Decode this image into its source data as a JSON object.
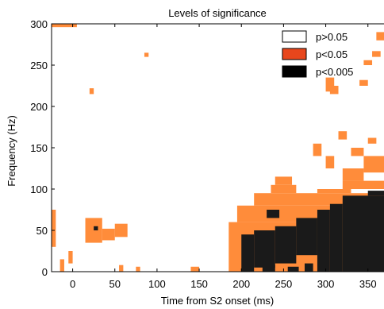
{
  "chart_data": {
    "type": "heatmap",
    "title": "Levels of significance",
    "xlabel": "Time from S2 onset (ms)",
    "ylabel": "Frequency (Hz)",
    "xlim": [
      -25,
      370
    ],
    "ylim": [
      0,
      300
    ],
    "x_ticks": [
      "0",
      "50",
      "100",
      "150",
      "200",
      "250",
      "300",
      "350"
    ],
    "x_tick_values": [
      0,
      50,
      100,
      150,
      200,
      250,
      300,
      350
    ],
    "y_ticks": [
      "0",
      "50",
      "100",
      "150",
      "200",
      "250",
      "300"
    ],
    "y_tick_values": [
      0,
      50,
      100,
      150,
      200,
      250,
      300
    ],
    "grid": false,
    "legend_position": "top-right",
    "levels": [
      {
        "label": "p>0.05",
        "color": "#ffffff"
      },
      {
        "label": "p<0.05",
        "color": "#ff8c3a"
      },
      {
        "label": "p<0.005",
        "color": "#1a1a1a"
      }
    ],
    "legend_swatch_colors": [
      "#ffffff",
      "#e8461c",
      "#000000"
    ],
    "regions": [
      {
        "level": "p<0.05",
        "x": [
          -25,
          -20
        ],
        "y": [
          30,
          75
        ]
      },
      {
        "level": "p<0.05",
        "x": [
          -15,
          -10
        ],
        "y": [
          0,
          15
        ]
      },
      {
        "level": "p<0.05",
        "x": [
          -5,
          0
        ],
        "y": [
          10,
          25
        ]
      },
      {
        "level": "p<0.05",
        "x": [
          15,
          35
        ],
        "y": [
          35,
          65
        ]
      },
      {
        "level": "p<0.05",
        "x": [
          35,
          50
        ],
        "y": [
          38,
          52
        ]
      },
      {
        "level": "p<0.05",
        "x": [
          50,
          65
        ],
        "y": [
          42,
          58
        ]
      },
      {
        "level": "p<0.05",
        "x": [
          20,
          25
        ],
        "y": [
          215,
          222
        ]
      },
      {
        "level": "p<0.05",
        "x": [
          55,
          60
        ],
        "y": [
          0,
          8
        ]
      },
      {
        "level": "p<0.05",
        "x": [
          75,
          80
        ],
        "y": [
          0,
          6
        ]
      },
      {
        "level": "p<0.05",
        "x": [
          85,
          90
        ],
        "y": [
          260,
          265
        ]
      },
      {
        "level": "p<0.05",
        "x": [
          140,
          150
        ],
        "y": [
          0,
          6
        ]
      },
      {
        "level": "p<0.05",
        "x": [
          -25,
          5
        ],
        "y": [
          296,
          300
        ]
      },
      {
        "level": "p<0.05",
        "x": [
          185,
          370
        ],
        "y": [
          0,
          60
        ]
      },
      {
        "level": "p<0.05",
        "x": [
          195,
          370
        ],
        "y": [
          60,
          80
        ]
      },
      {
        "level": "p<0.05",
        "x": [
          215,
          370
        ],
        "y": [
          80,
          95
        ]
      },
      {
        "level": "p<0.05",
        "x": [
          235,
          265
        ],
        "y": [
          95,
          105
        ]
      },
      {
        "level": "p<0.05",
        "x": [
          240,
          260
        ],
        "y": [
          105,
          115
        ]
      },
      {
        "level": "p<0.05",
        "x": [
          290,
          330
        ],
        "y": [
          95,
          100
        ]
      },
      {
        "level": "p<0.05",
        "x": [
          320,
          370
        ],
        "y": [
          100,
          110
        ]
      },
      {
        "level": "p<0.05",
        "x": [
          320,
          345
        ],
        "y": [
          110,
          125
        ]
      },
      {
        "level": "p<0.05",
        "x": [
          345,
          370
        ],
        "y": [
          120,
          140
        ]
      },
      {
        "level": "p<0.05",
        "x": [
          300,
          310
        ],
        "y": [
          125,
          140
        ]
      },
      {
        "level": "p<0.05",
        "x": [
          285,
          295
        ],
        "y": [
          140,
          155
        ]
      },
      {
        "level": "p<0.05",
        "x": [
          330,
          345
        ],
        "y": [
          140,
          150
        ]
      },
      {
        "level": "p<0.05",
        "x": [
          315,
          325
        ],
        "y": [
          160,
          170
        ]
      },
      {
        "level": "p<0.05",
        "x": [
          350,
          360
        ],
        "y": [
          155,
          162
        ]
      },
      {
        "level": "p<0.05",
        "x": [
          300,
          310
        ],
        "y": [
          218,
          235
        ]
      },
      {
        "level": "p<0.05",
        "x": [
          305,
          315
        ],
        "y": [
          215,
          225
        ]
      },
      {
        "level": "p<0.05",
        "x": [
          340,
          350
        ],
        "y": [
          225,
          232
        ]
      },
      {
        "level": "p<0.05",
        "x": [
          345,
          355
        ],
        "y": [
          250,
          256
        ]
      },
      {
        "level": "p<0.05",
        "x": [
          355,
          365
        ],
        "y": [
          260,
          267
        ]
      },
      {
        "level": "p<0.05",
        "x": [
          360,
          370
        ],
        "y": [
          280,
          290
        ]
      },
      {
        "level": "p<0.005",
        "x": [
          25,
          30
        ],
        "y": [
          50,
          55
        ]
      },
      {
        "level": "p<0.005",
        "x": [
          200,
          215
        ],
        "y": [
          0,
          45
        ]
      },
      {
        "level": "p<0.005",
        "x": [
          215,
          240
        ],
        "y": [
          5,
          50
        ]
      },
      {
        "level": "p<0.005",
        "x": [
          240,
          265
        ],
        "y": [
          10,
          55
        ]
      },
      {
        "level": "p<0.005",
        "x": [
          265,
          290
        ],
        "y": [
          20,
          65
        ]
      },
      {
        "level": "p<0.005",
        "x": [
          290,
          305
        ],
        "y": [
          0,
          75
        ]
      },
      {
        "level": "p<0.005",
        "x": [
          305,
          320
        ],
        "y": [
          0,
          82
        ]
      },
      {
        "level": "p<0.005",
        "x": [
          320,
          370
        ],
        "y": [
          0,
          92
        ]
      },
      {
        "level": "p<0.005",
        "x": [
          230,
          245
        ],
        "y": [
          65,
          75
        ]
      },
      {
        "level": "p<0.005",
        "x": [
          350,
          370
        ],
        "y": [
          92,
          98
        ]
      },
      {
        "level": "p<0.005",
        "x": [
          225,
          240
        ],
        "y": [
          0,
          8
        ]
      },
      {
        "level": "p<0.005",
        "x": [
          275,
          285
        ],
        "y": [
          0,
          10
        ]
      },
      {
        "level": "p<0.005",
        "x": [
          255,
          268
        ],
        "y": [
          0,
          6
        ]
      }
    ]
  }
}
